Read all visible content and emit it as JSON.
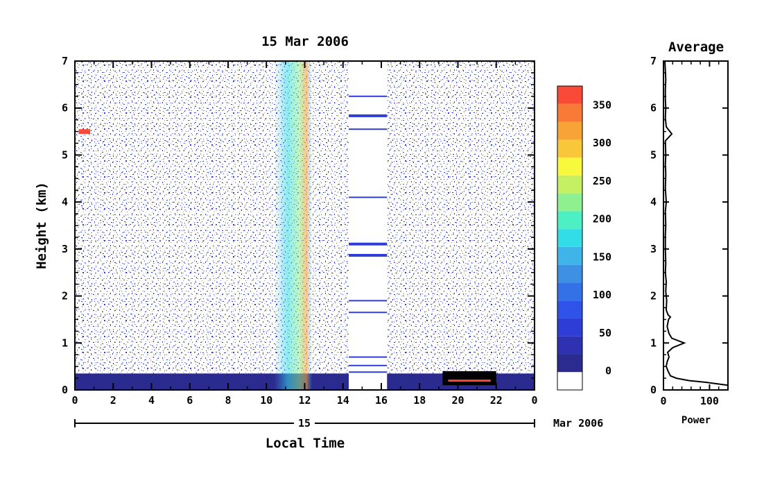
{
  "chart_data": [
    {
      "type": "heatmap",
      "title": "15 Mar 2006",
      "xlabel": "Local Time",
      "ylabel": "Height (km)",
      "xlim": [
        0,
        24
      ],
      "ylim": [
        0,
        7
      ],
      "x_ticks": [
        "0",
        "2",
        "4",
        "6",
        "8",
        "10",
        "12",
        "14",
        "16",
        "18",
        "20",
        "22",
        "0"
      ],
      "y_ticks": [
        "0",
        "1",
        "2",
        "3",
        "4",
        "5",
        "6",
        "7"
      ],
      "date_axis": {
        "day_label": "15",
        "month_label": "Mar 2006"
      },
      "colorbar": {
        "ticks": [
          "0",
          "50",
          "100",
          "150",
          "200",
          "250",
          "300",
          "350"
        ],
        "range": [
          -25,
          375
        ],
        "colors": [
          "#ffffff",
          "#2b2b8f",
          "#2e31b0",
          "#2e3dd6",
          "#2f52e8",
          "#3470e6",
          "#3d90e3",
          "#3fb4e8",
          "#33dde8",
          "#4cf0c2",
          "#8ef08e",
          "#c6f063",
          "#f8f83c",
          "#f8c83a",
          "#f8a336",
          "#f87a36",
          "#f84a36"
        ]
      },
      "data_gap": [
        14.3,
        16.3
      ],
      "features": [
        {
          "label": "boundary layer echo",
          "x": [
            0,
            24
          ],
          "height_km": [
            0,
            0.35
          ],
          "level": 15
        },
        {
          "label": "enhanced echo",
          "x": [
            10.4,
            12.4
          ],
          "height_km": [
            0,
            7
          ],
          "level": 175
        },
        {
          "label": "layer",
          "x": [
            0.2,
            0.8
          ],
          "height_km": [
            5.45,
            5.55
          ],
          "level": 360
        },
        {
          "label": "low layer",
          "x": [
            19.2,
            22
          ],
          "height_km": [
            0.1,
            0.4
          ],
          "level": 360
        }
      ]
    },
    {
      "type": "line",
      "title": "Average",
      "xlabel": "Power",
      "ylabel": "",
      "xlim": [
        0,
        140
      ],
      "ylim": [
        0,
        7
      ],
      "x_ticks": [
        "0",
        "100"
      ],
      "y_ticks": [
        "0",
        "1",
        "2",
        "3",
        "4",
        "5",
        "6",
        "7"
      ],
      "series": [
        {
          "x": [
            140,
            95,
            55,
            28,
            15,
            10,
            6,
            8,
            12,
            9,
            20,
            45,
            18,
            12,
            8,
            11,
            15,
            10,
            6,
            7,
            5,
            6,
            4,
            5,
            4,
            4,
            5,
            4,
            6,
            4,
            5,
            4,
            5,
            4,
            18,
            6,
            4,
            5,
            4,
            4,
            5,
            4,
            3
          ],
          "y": [
            0.1,
            0.16,
            0.2,
            0.25,
            0.3,
            0.4,
            0.5,
            0.6,
            0.7,
            0.8,
            0.9,
            1.0,
            1.1,
            1.2,
            1.35,
            1.5,
            1.55,
            1.6,
            1.7,
            1.9,
            2.1,
            2.3,
            2.5,
            2.7,
            3.0,
            3.3,
            3.5,
            3.8,
            4.0,
            4.3,
            4.6,
            4.8,
            5.0,
            5.3,
            5.45,
            5.6,
            5.8,
            6.0,
            6.2,
            6.4,
            6.6,
            6.8,
            7.0
          ]
        }
      ]
    }
  ]
}
